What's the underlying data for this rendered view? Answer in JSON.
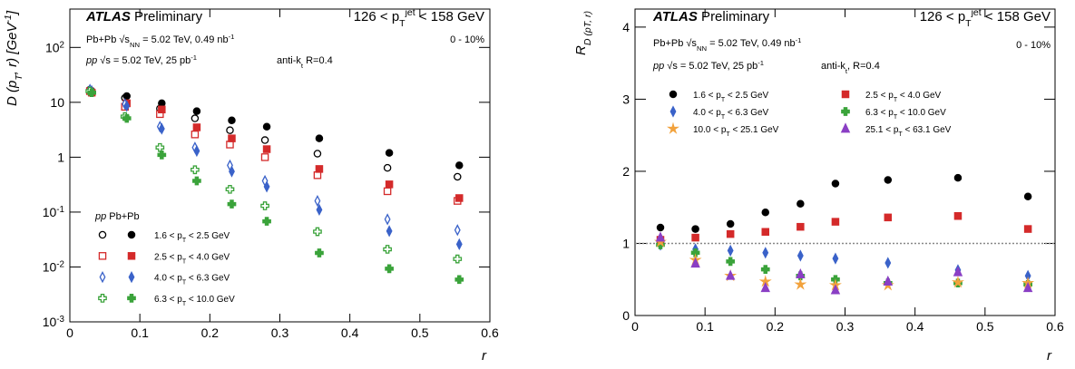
{
  "chart_data": [
    {
      "type": "scatter",
      "log_y": true,
      "y_label": [
        "D (p",
        {
          "text": "T",
          "pos": "sub"
        },
        ", r) [GeV",
        {
          "text": "-1",
          "pos": "sup"
        },
        "]"
      ],
      "x_label": "r",
      "x": [
        0.03,
        0.08,
        0.13,
        0.18,
        0.23,
        0.28,
        0.355,
        0.455,
        0.555
      ],
      "xlim": [
        0,
        0.6
      ],
      "xticks": [
        0,
        0.1,
        0.2,
        0.3,
        0.4,
        0.5,
        0.6
      ],
      "ylim": [
        0.001,
        500
      ],
      "yticks": [
        {
          "value": 0.001,
          "label": [
            "10",
            {
              "text": "-3",
              "pos": "sup"
            }
          ]
        },
        {
          "value": 0.01,
          "label": [
            "10",
            {
              "text": "-2",
              "pos": "sup"
            }
          ]
        },
        {
          "value": 0.1,
          "label": [
            "10",
            {
              "text": "-1",
              "pos": "sup"
            }
          ]
        },
        1,
        10,
        {
          "value": 100,
          "label": [
            "10",
            {
              "text": "2",
              "pos": "sup"
            }
          ]
        }
      ],
      "annotations": [
        [
          {
            "text": "ATLAS",
            "style": "bold-italic"
          },
          " Preliminary"
        ],
        [
          "126 < p",
          {
            "text": "T",
            "pos": "sub"
          },
          {
            "text": "jet",
            "pos": "sup"
          },
          " < 158 GeV"
        ],
        [
          "Pb+Pb  √s",
          {
            "text": "NN",
            "pos": "sub"
          },
          " = 5.02 TeV, 0.49 nb",
          {
            "text": "-1",
            "pos": "sup"
          }
        ],
        "0 - 10%",
        [
          {
            "text": "pp",
            "style": "italic"
          },
          "  √s = 5.02 TeV, 25 pb",
          {
            "text": "-1",
            "pos": "sup"
          }
        ],
        [
          "anti-k",
          {
            "text": "t",
            "pos": "sub"
          },
          " R=0.4"
        ]
      ],
      "legend_header": [
        {
          "text": "pp",
          "style": "italic"
        },
        "  Pb+Pb"
      ],
      "series": [
        {
          "name": [
            "1.6 < p",
            {
              "text": "T",
              "pos": "sub"
            },
            " < 2.5 GeV"
          ],
          "color": "#000000",
          "marker": "circle",
          "values": [
            16,
            13,
            9.6,
            6.9,
            4.7,
            3.6,
            2.2,
            1.2,
            0.71
          ],
          "pp_values": [
            17,
            12,
            7.7,
            5.1,
            3.1,
            2.05,
            1.16,
            0.64,
            0.44
          ]
        },
        {
          "name": [
            "2.5 < p",
            {
              "text": "T",
              "pos": "sub"
            },
            " < 4.0 GeV"
          ],
          "color": "#d42a2a",
          "marker": "square",
          "values": [
            15,
            9.6,
            7.4,
            3.5,
            2.2,
            1.4,
            0.61,
            0.32,
            0.18
          ],
          "pp_values": [
            16,
            8.3,
            6.1,
            2.6,
            1.7,
            1.0,
            0.47,
            0.24,
            0.16
          ]
        },
        {
          "name": [
            "4.0 < p",
            {
              "text": "T",
              "pos": "sub"
            },
            " < 6.3 GeV"
          ],
          "color": "#3a62c9",
          "marker": "diamond",
          "values": [
            16,
            8.6,
            3.3,
            1.3,
            0.55,
            0.29,
            0.11,
            0.045,
            0.026
          ],
          "pp_values": [
            17,
            9.3,
            3.6,
            1.5,
            0.71,
            0.37,
            0.16,
            0.074,
            0.047
          ]
        },
        {
          "name": [
            "6.3 < p",
            {
              "text": "T",
              "pos": "sub"
            },
            " < 10.0 GeV"
          ],
          "color": "#3aa33a",
          "marker": "cross",
          "values": [
            15,
            5.1,
            1.1,
            0.37,
            0.14,
            0.068,
            0.018,
            0.0093,
            0.0059
          ],
          "pp_values": [
            16,
            5.5,
            1.5,
            0.59,
            0.26,
            0.13,
            0.044,
            0.021,
            0.014
          ]
        }
      ]
    },
    {
      "type": "scatter",
      "log_y": false,
      "y_label": [
        "R",
        {
          "text": "D (p",
          "pos": "sub"
        },
        {
          "text": "T",
          "pos": "sub"
        },
        {
          "text": ", r)",
          "pos": "sub"
        }
      ],
      "x_label": "r",
      "x": [
        0.035,
        0.085,
        0.135,
        0.185,
        0.235,
        0.285,
        0.36,
        0.46,
        0.56
      ],
      "xlim": [
        0,
        0.6
      ],
      "xticks": [
        0,
        0.1,
        0.2,
        0.3,
        0.4,
        0.5,
        0.6
      ],
      "ylim": [
        0,
        4.25
      ],
      "yticks": [
        0,
        1,
        2,
        3,
        4
      ],
      "reference_line": 1,
      "annotations": [
        [
          {
            "text": "ATLAS",
            "style": "bold-italic"
          },
          " Preliminary"
        ],
        [
          "126 < p",
          {
            "text": "T",
            "pos": "sub"
          },
          {
            "text": "jet",
            "pos": "sup"
          },
          " < 158 GeV"
        ],
        [
          "Pb+Pb  √s",
          {
            "text": "NN",
            "pos": "sub"
          },
          " = 5.02 TeV, 0.49 nb",
          {
            "text": "-1",
            "pos": "sup"
          }
        ],
        "0 - 10%",
        [
          {
            "text": "pp",
            "style": "italic"
          },
          "  √s = 5.02 TeV, 25 pb",
          {
            "text": "-1",
            "pos": "sup"
          }
        ],
        [
          "anti-k",
          {
            "text": "t",
            "pos": "sub"
          },
          ", R=0.4"
        ]
      ],
      "series": [
        {
          "name": [
            "1.6 < p",
            {
              "text": "T",
              "pos": "sub"
            },
            " < 2.5 GeV"
          ],
          "color": "#000000",
          "marker": "circle",
          "values": [
            1.22,
            1.2,
            1.27,
            1.43,
            1.55,
            1.83,
            1.88,
            1.91,
            1.65
          ]
        },
        {
          "name": [
            "2.5 < p",
            {
              "text": "T",
              "pos": "sub"
            },
            " < 4.0 GeV"
          ],
          "color": "#d42a2a",
          "marker": "square",
          "values": [
            1.05,
            1.08,
            1.13,
            1.16,
            1.23,
            1.3,
            1.36,
            1.38,
            1.2
          ]
        },
        {
          "name": [
            "4.0 < p",
            {
              "text": "T",
              "pos": "sub"
            },
            " < 6.3 GeV"
          ],
          "color": "#3a62c9",
          "marker": "diamond",
          "values": [
            0.98,
            0.92,
            0.9,
            0.87,
            0.83,
            0.79,
            0.73,
            0.63,
            0.55
          ]
        },
        {
          "name": [
            "6.3 < p",
            {
              "text": "T",
              "pos": "sub"
            },
            " < 10.0 GeV"
          ],
          "color": "#3aa33a",
          "marker": "cross",
          "values": [
            0.98,
            0.87,
            0.75,
            0.64,
            0.55,
            0.5,
            0.45,
            0.45,
            0.43
          ]
        },
        {
          "name": [
            "10.0 < p",
            {
              "text": "T",
              "pos": "sub"
            },
            " < 25.1 GeV"
          ],
          "color": "#f2a23c",
          "marker": "star",
          "values": [
            1.02,
            0.77,
            0.55,
            0.47,
            0.43,
            0.42,
            0.42,
            0.46,
            0.45
          ]
        },
        {
          "name": [
            "25.1 < p",
            {
              "text": "T",
              "pos": "sub"
            },
            " < 63.1 GeV"
          ],
          "color": "#8a3fc4",
          "marker": "triangle",
          "values": [
            1.08,
            0.72,
            0.55,
            0.38,
            0.57,
            0.35,
            0.47,
            0.6,
            0.38
          ]
        }
      ]
    }
  ]
}
